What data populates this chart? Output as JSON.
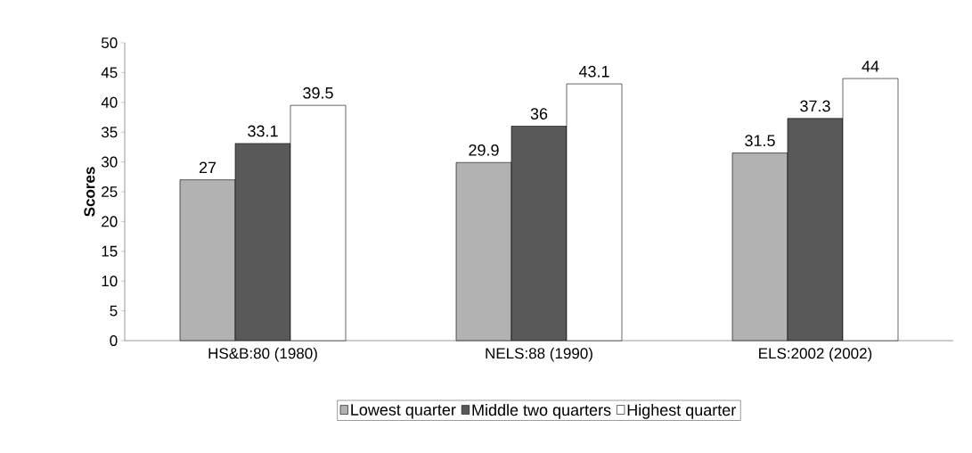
{
  "chart_data": {
    "type": "bar",
    "ylabel": "Scores",
    "categories": [
      "HS&B:80 (1980)",
      "NELS:88 (1990)",
      "ELS:2002 (2002)"
    ],
    "series": [
      {
        "name": "Lowest quarter",
        "color": "#b2b2b2",
        "values": [
          27,
          29.9,
          31.5
        ]
      },
      {
        "name": "Middle two quarters",
        "color": "#595959",
        "values": [
          33.1,
          36,
          37.3
        ]
      },
      {
        "name": "Highest quarter",
        "color": "#ffffff",
        "values": [
          39.5,
          43.1,
          44
        ]
      }
    ],
    "ylim": [
      0,
      50
    ],
    "yticks": [
      0,
      5,
      10,
      15,
      20,
      25,
      30,
      35,
      40,
      45,
      50
    ],
    "data_labels": true,
    "legend": "bottom",
    "grid": false
  }
}
